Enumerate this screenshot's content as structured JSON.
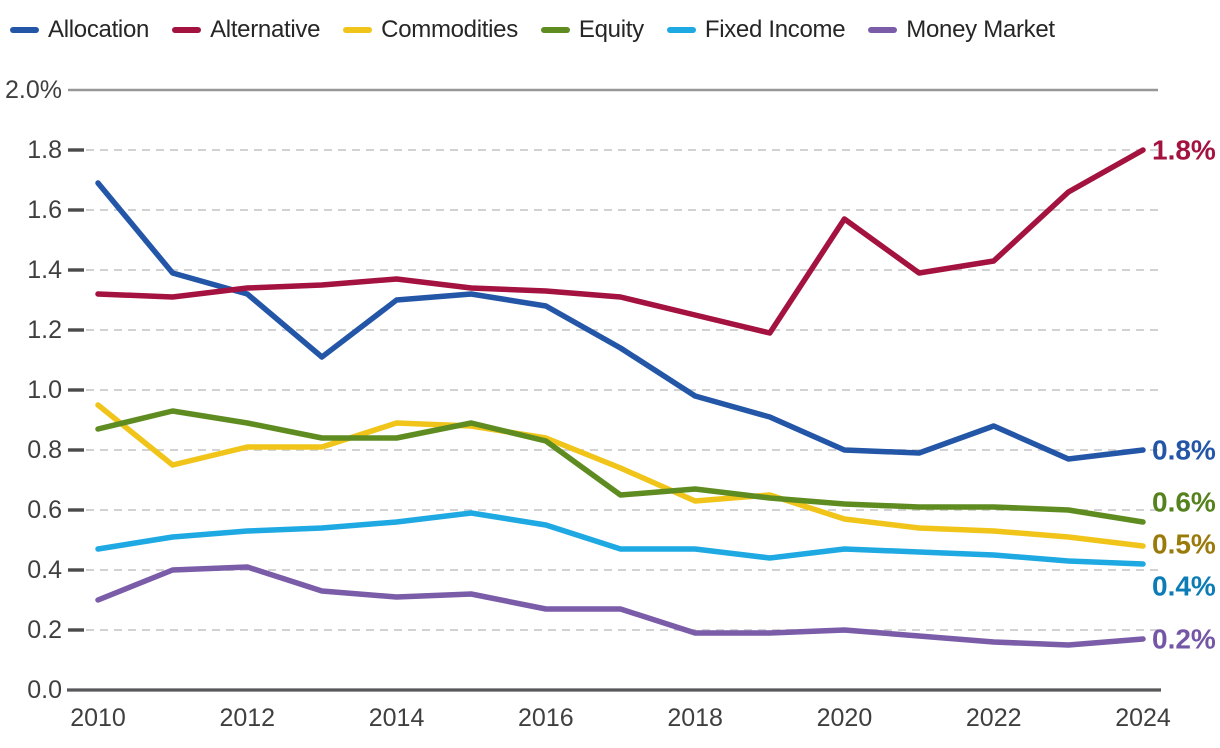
{
  "chart_data": {
    "type": "line",
    "title": "",
    "xlabel": "",
    "ylabel": "",
    "x": [
      2010,
      2011,
      2012,
      2013,
      2014,
      2015,
      2016,
      2017,
      2018,
      2019,
      2020,
      2021,
      2022,
      2023,
      2024
    ],
    "x_tick_labels": [
      "2010",
      "2012",
      "2014",
      "2016",
      "2018",
      "2020",
      "2022",
      "2024"
    ],
    "y_tick_labels": [
      "2.0%",
      "1.8",
      "1.6",
      "1.4",
      "1.2",
      "1.0",
      "0.8",
      "0.6",
      "0.4",
      "0.2",
      "0.0"
    ],
    "ylim": [
      0.0,
      2.0
    ],
    "y_unit": "percent",
    "grid": "horizontal-dashed",
    "legend_position": "top-left",
    "axis_text_color": "#3f3f3f",
    "series": [
      {
        "name": "Allocation",
        "color": "#2456A8",
        "end_label": "0.8%",
        "label_color": "#2456A8",
        "values": [
          1.69,
          1.39,
          1.32,
          1.11,
          1.3,
          1.32,
          1.28,
          1.14,
          0.98,
          0.91,
          0.8,
          0.79,
          0.88,
          0.77,
          0.8
        ]
      },
      {
        "name": "Alternative",
        "color": "#A4123F",
        "end_label": "1.8%",
        "label_color": "#A4123F",
        "values": [
          1.32,
          1.31,
          1.34,
          1.35,
          1.37,
          1.34,
          1.33,
          1.31,
          1.25,
          1.19,
          1.57,
          1.39,
          1.43,
          1.66,
          1.8
        ]
      },
      {
        "name": "Commodities",
        "color": "#F0C419",
        "end_label": "0.5%",
        "label_color": "#9A7A0B",
        "values": [
          0.95,
          0.75,
          0.81,
          0.81,
          0.89,
          0.88,
          0.84,
          0.74,
          0.63,
          0.65,
          0.57,
          0.54,
          0.53,
          0.51,
          0.48
        ]
      },
      {
        "name": "Equity",
        "color": "#5F8C21",
        "end_label": "0.6%",
        "label_color": "#56821E",
        "values": [
          0.87,
          0.93,
          0.89,
          0.84,
          0.84,
          0.89,
          0.83,
          0.65,
          0.67,
          0.64,
          0.62,
          0.61,
          0.61,
          0.6,
          0.56
        ]
      },
      {
        "name": "Fixed Income",
        "color": "#1FA9E3",
        "end_label": "0.4%",
        "label_color": "#0B7CB5",
        "values": [
          0.47,
          0.51,
          0.53,
          0.54,
          0.56,
          0.59,
          0.55,
          0.47,
          0.47,
          0.44,
          0.47,
          0.46,
          0.45,
          0.43,
          0.42
        ]
      },
      {
        "name": "Money Market",
        "color": "#7A5CA8",
        "end_label": "0.2%",
        "label_color": "#7456A6",
        "values": [
          0.3,
          0.4,
          0.41,
          0.33,
          0.31,
          0.32,
          0.27,
          0.27,
          0.19,
          0.19,
          0.2,
          0.18,
          0.16,
          0.15,
          0.17
        ]
      }
    ]
  }
}
